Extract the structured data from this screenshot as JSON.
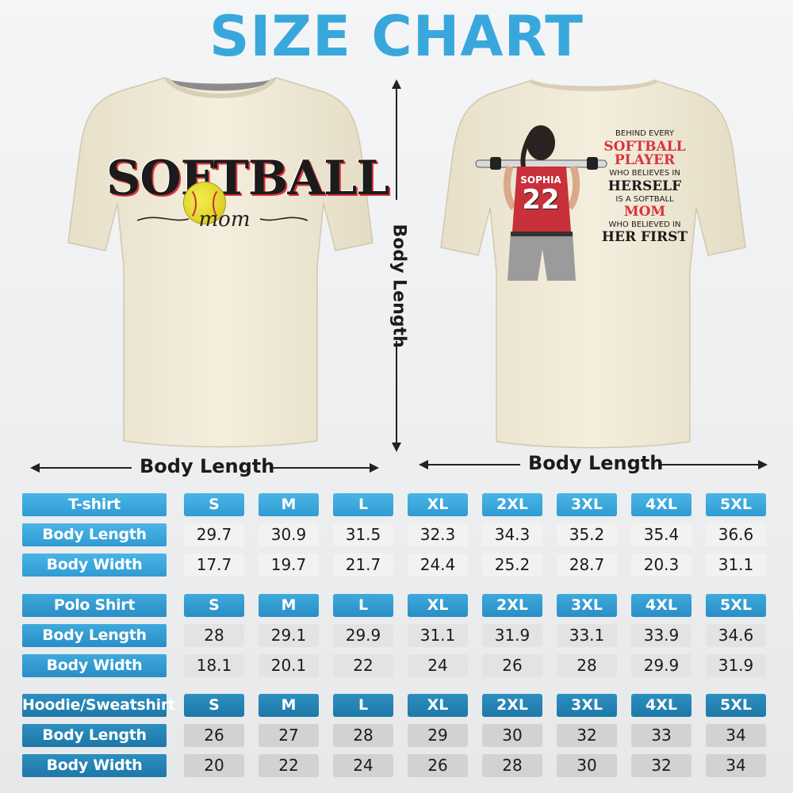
{
  "title": "SIZE CHART",
  "front_shirt": {
    "word": "SOFTBALL",
    "script": "mom"
  },
  "back_shirt": {
    "jersey_name": "SOPHIA",
    "jersey_number": "22",
    "lines": [
      {
        "text": "BEHIND EVERY",
        "style": "small"
      },
      {
        "text": "SOFTBALL",
        "style": "red"
      },
      {
        "text": "PLAYER",
        "style": "red"
      },
      {
        "text": "WHO BELIEVES IN",
        "style": "small"
      },
      {
        "text": "HERSELF",
        "style": "dark"
      },
      {
        "text": "IS A SOFTBALL",
        "style": "small"
      },
      {
        "text": "MOM",
        "style": "red"
      },
      {
        "text": "WHO BELIEVED IN",
        "style": "small"
      },
      {
        "text": "HER FIRST",
        "style": "dark"
      }
    ]
  },
  "dimensions": {
    "front_horizontal": "Body Length",
    "back_horizontal": "Body Length",
    "vertical": "Body Length"
  },
  "colors": {
    "title": "#38a8dc",
    "shirt": "#f1ead6",
    "accent_red": "#d8343f"
  },
  "sizes": [
    "S",
    "M",
    "L",
    "XL",
    "2XL",
    "3XL",
    "4XL",
    "5XL"
  ],
  "groups": [
    {
      "name": "T-shirt",
      "rows": [
        {
          "label": "Body Length",
          "values": [
            "29.7",
            "30.9",
            "31.5",
            "32.3",
            "34.3",
            "35.2",
            "35.4",
            "36.6"
          ]
        },
        {
          "label": "Body Width",
          "values": [
            "17.7",
            "19.7",
            "21.7",
            "24.4",
            "25.2",
            "28.7",
            "20.3",
            "31.1"
          ]
        }
      ]
    },
    {
      "name": "Polo Shirt",
      "rows": [
        {
          "label": "Body Length",
          "values": [
            "28",
            "29.1",
            "29.9",
            "31.1",
            "31.9",
            "33.1",
            "33.9",
            "34.6"
          ]
        },
        {
          "label": "Body Width",
          "values": [
            "18.1",
            "20.1",
            "22",
            "24",
            "26",
            "28",
            "29.9",
            "31.9"
          ]
        }
      ]
    },
    {
      "name": "Hoodie/Sweatshirt",
      "rows": [
        {
          "label": "Body Length",
          "values": [
            "26",
            "27",
            "28",
            "29",
            "30",
            "32",
            "33",
            "34"
          ]
        },
        {
          "label": "Body Width",
          "values": [
            "20",
            "22",
            "24",
            "26",
            "28",
            "30",
            "32",
            "34"
          ]
        }
      ]
    }
  ]
}
